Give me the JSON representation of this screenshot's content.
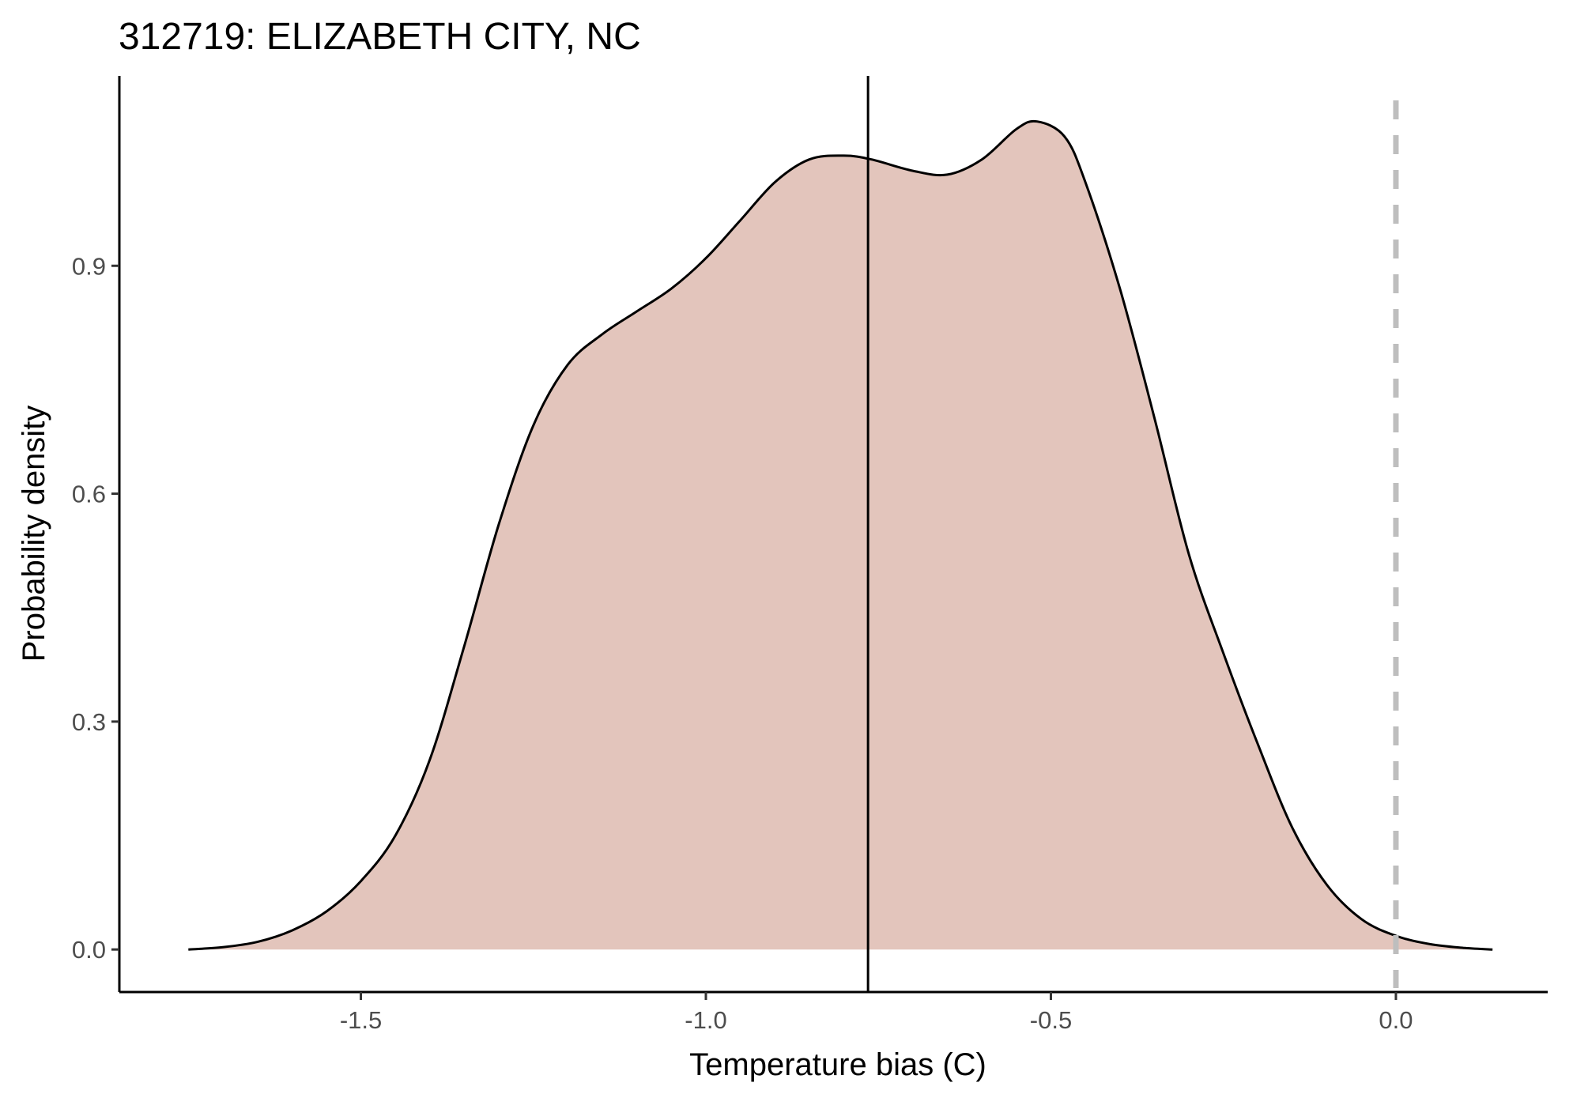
{
  "chart_data": {
    "type": "area",
    "title": "312719: ELIZABETH CITY, NC",
    "xlabel": "Temperature bias (C)",
    "ylabel": "Probability density",
    "xlim": [
      -1.85,
      0.22
    ],
    "ylim": [
      -0.056,
      1.15
    ],
    "x_ticks": [
      -1.5,
      -1.0,
      -0.5,
      0.0
    ],
    "x_tick_labels": [
      "-1.5",
      "-1.0",
      "-0.5",
      "0.0"
    ],
    "y_ticks": [
      0.0,
      0.3,
      0.6,
      0.9
    ],
    "y_tick_labels": [
      "0.0",
      "0.3",
      "0.6",
      "0.9"
    ],
    "grid": false,
    "fill_color": "#e3c5bc",
    "line_color": "#000000",
    "reference_lines": [
      {
        "x": -0.765,
        "style": "solid",
        "color": "#000000"
      },
      {
        "x": 0.0,
        "style": "dashed",
        "color": "#bebebe"
      }
    ],
    "series": [
      {
        "x": [
          -1.75,
          -1.7,
          -1.65,
          -1.6,
          -1.55,
          -1.5,
          -1.45,
          -1.4,
          -1.35,
          -1.3,
          -1.25,
          -1.2,
          -1.15,
          -1.1,
          -1.05,
          -1.0,
          -0.95,
          -0.9,
          -0.85,
          -0.8,
          -0.76,
          -0.7,
          -0.65,
          -0.6,
          -0.55,
          -0.52,
          -0.48,
          -0.45,
          -0.4,
          -0.35,
          -0.3,
          -0.25,
          -0.2,
          -0.15,
          -0.1,
          -0.05,
          0.0,
          0.05,
          0.1,
          0.14
        ],
        "y": [
          0.0,
          0.003,
          0.01,
          0.025,
          0.05,
          0.09,
          0.15,
          0.25,
          0.4,
          0.56,
          0.69,
          0.77,
          0.81,
          0.84,
          0.87,
          0.91,
          0.96,
          1.01,
          1.04,
          1.045,
          1.04,
          1.025,
          1.02,
          1.04,
          1.08,
          1.09,
          1.07,
          1.01,
          0.87,
          0.7,
          0.52,
          0.39,
          0.27,
          0.16,
          0.085,
          0.04,
          0.018,
          0.007,
          0.002,
          0.0
        ]
      }
    ]
  }
}
